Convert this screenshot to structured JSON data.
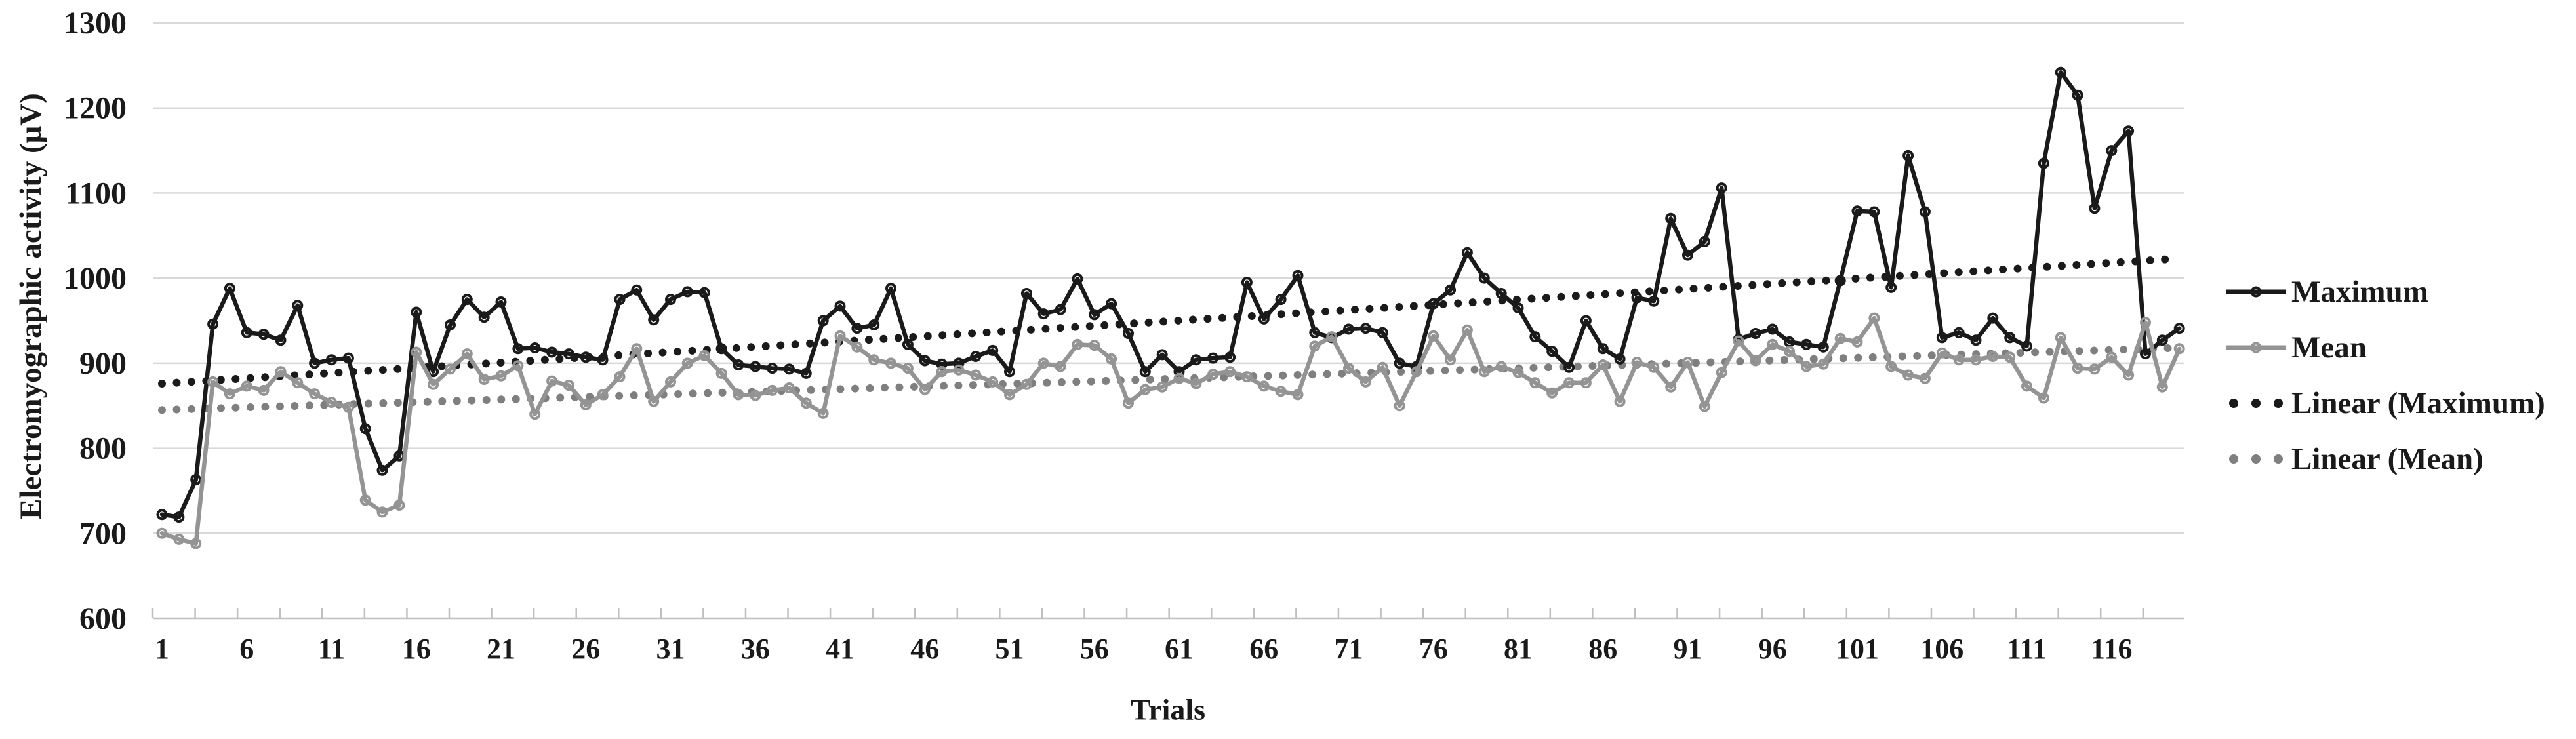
{
  "page": {
    "background": "#ffffff"
  },
  "chart_data": {
    "type": "line",
    "title": "",
    "xlabel": "Trials",
    "ylabel": "Electromyographic activity (μV)",
    "ylim": [
      600,
      1300
    ],
    "y_ticks": [
      600,
      700,
      800,
      900,
      1000,
      1100,
      1200,
      1300
    ],
    "x_tick_labels": [
      1,
      6,
      11,
      16,
      21,
      26,
      31,
      36,
      41,
      46,
      51,
      56,
      61,
      66,
      71,
      76,
      81,
      86,
      91,
      96,
      101,
      106,
      111,
      116
    ],
    "x_range": [
      1,
      120
    ],
    "grid": true,
    "legend_position": "right",
    "colors": {
      "maximum": "#1a1a1a",
      "mean": "#949494",
      "linear_maximum": "#1a1a1a",
      "linear_mean": "#7f7f7f",
      "gridline": "#d9d9d9",
      "axis_line": "#bfbfbf",
      "text": "#1a1a1a"
    },
    "series": [
      {
        "name": "Maximum",
        "style": "line-markers",
        "color": "#1a1a1a",
        "values": [
          722,
          719,
          763,
          946,
          988,
          936,
          934,
          927,
          968,
          900,
          904,
          906,
          823,
          774,
          791,
          960,
          890,
          945,
          975,
          954,
          972,
          917,
          918,
          913,
          911,
          907,
          904,
          975,
          986,
          951,
          975,
          984,
          983,
          917,
          898,
          896,
          894,
          893,
          888,
          950,
          967,
          941,
          945,
          988,
          922,
          903,
          899,
          900,
          908,
          915,
          890,
          982,
          958,
          963,
          999,
          957,
          970,
          935,
          890,
          910,
          890,
          904,
          906,
          907,
          995,
          952,
          975,
          1003,
          936,
          930,
          940,
          941,
          936,
          900,
          896,
          970,
          986,
          1030,
          1000,
          982,
          965,
          931,
          914,
          895,
          950,
          917,
          905,
          977,
          973,
          1070,
          1027,
          1043,
          1106,
          928,
          935,
          940,
          925,
          922,
          919,
          997,
          1079,
          1078,
          989,
          1144,
          1078,
          930,
          936,
          927,
          953,
          930,
          920,
          1135,
          1242,
          1215,
          1082,
          1150,
          1173,
          911,
          927,
          941
        ]
      },
      {
        "name": "Mean",
        "style": "line-markers",
        "color": "#949494",
        "values": [
          700,
          693,
          688,
          878,
          864,
          873,
          868,
          890,
          877,
          864,
          854,
          848,
          739,
          725,
          733,
          913,
          875,
          893,
          911,
          881,
          885,
          897,
          840,
          879,
          874,
          851,
          863,
          884,
          917,
          855,
          878,
          900,
          909,
          888,
          863,
          862,
          868,
          871,
          853,
          841,
          932,
          919,
          904,
          900,
          894,
          869,
          890,
          892,
          886,
          878,
          863,
          875,
          900,
          896,
          922,
          921,
          905,
          853,
          869,
          872,
          882,
          876,
          887,
          890,
          884,
          873,
          867,
          863,
          920,
          931,
          894,
          878,
          895,
          850,
          890,
          932,
          904,
          939,
          890,
          896,
          889,
          877,
          865,
          877,
          877,
          898,
          855,
          901,
          895,
          872,
          901,
          849,
          889,
          926,
          903,
          922,
          914,
          896,
          899,
          929,
          925,
          953,
          896,
          886,
          882,
          912,
          904,
          904,
          908,
          907,
          873,
          859,
          930,
          894,
          893,
          907,
          886,
          948,
          872,
          917
        ]
      },
      {
        "name": "Linear (Maximum)",
        "style": "dotted-trend",
        "color": "#1a1a1a",
        "trend_start": 876,
        "trend_end": 1023
      },
      {
        "name": "Linear (Mean)",
        "style": "dotted-trend",
        "color": "#7f7f7f",
        "trend_start": 845,
        "trend_end": 918
      }
    ]
  }
}
